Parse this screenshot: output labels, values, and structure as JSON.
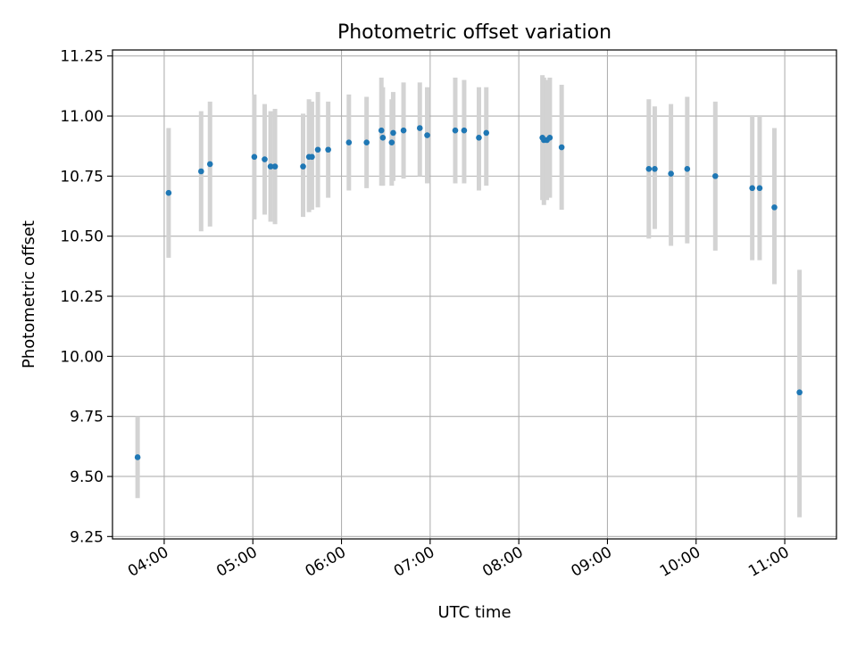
{
  "chart_data": {
    "type": "scatter",
    "title": "Photometric offset variation",
    "xlabel": "UTC time",
    "ylabel": "Photometric offset",
    "xlim": [
      "03:25",
      "11:35"
    ],
    "ylim": [
      9.24,
      11.275
    ],
    "x_ticks": [
      "04:00",
      "05:00",
      "06:00",
      "07:00",
      "08:00",
      "09:00",
      "10:00",
      "11:00"
    ],
    "y_ticks": [
      "9.25",
      "9.50",
      "9.75",
      "10.00",
      "10.25",
      "10.50",
      "10.75",
      "11.00",
      "11.25"
    ],
    "grid": true,
    "colors": {
      "point": "#1f77b4",
      "errorbar": "#d3d3d3",
      "grid": "#b0b0b0",
      "axis": "#000000"
    },
    "points": [
      {
        "t": "03:42",
        "y": 9.58,
        "lo": 9.41,
        "hi": 9.75
      },
      {
        "t": "04:03",
        "y": 10.68,
        "lo": 10.41,
        "hi": 10.95
      },
      {
        "t": "04:25",
        "y": 10.77,
        "lo": 10.52,
        "hi": 11.02
      },
      {
        "t": "04:31",
        "y": 10.8,
        "lo": 10.54,
        "hi": 11.06
      },
      {
        "t": "05:01",
        "y": 10.83,
        "lo": 10.57,
        "hi": 11.09
      },
      {
        "t": "05:08",
        "y": 10.82,
        "lo": 10.59,
        "hi": 11.05
      },
      {
        "t": "05:12",
        "y": 10.79,
        "lo": 10.56,
        "hi": 11.02
      },
      {
        "t": "05:15",
        "y": 10.79,
        "lo": 10.55,
        "hi": 11.03
      },
      {
        "t": "05:34",
        "y": 10.79,
        "lo": 10.58,
        "hi": 11.01
      },
      {
        "t": "05:38",
        "y": 10.83,
        "lo": 10.6,
        "hi": 11.07
      },
      {
        "t": "05:40",
        "y": 10.83,
        "lo": 10.61,
        "hi": 11.06
      },
      {
        "t": "05:44",
        "y": 10.86,
        "lo": 10.62,
        "hi": 11.1
      },
      {
        "t": "05:51",
        "y": 10.86,
        "lo": 10.66,
        "hi": 11.06
      },
      {
        "t": "06:05",
        "y": 10.89,
        "lo": 10.69,
        "hi": 11.09
      },
      {
        "t": "06:17",
        "y": 10.89,
        "lo": 10.7,
        "hi": 11.08
      },
      {
        "t": "06:27",
        "y": 10.94,
        "lo": 10.71,
        "hi": 11.16
      },
      {
        "t": "06:28",
        "y": 10.91,
        "lo": 10.71,
        "hi": 11.12
      },
      {
        "t": "06:34",
        "y": 10.89,
        "lo": 10.71,
        "hi": 11.07
      },
      {
        "t": "06:35",
        "y": 10.93,
        "lo": 10.73,
        "hi": 11.1
      },
      {
        "t": "06:42",
        "y": 10.94,
        "lo": 10.74,
        "hi": 11.14
      },
      {
        "t": "06:53",
        "y": 10.95,
        "lo": 10.75,
        "hi": 11.14
      },
      {
        "t": "06:58",
        "y": 10.92,
        "lo": 10.72,
        "hi": 11.12
      },
      {
        "t": "07:17",
        "y": 10.94,
        "lo": 10.72,
        "hi": 11.16
      },
      {
        "t": "07:23",
        "y": 10.94,
        "lo": 10.72,
        "hi": 11.15
      },
      {
        "t": "07:33",
        "y": 10.91,
        "lo": 10.69,
        "hi": 11.12
      },
      {
        "t": "07:38",
        "y": 10.93,
        "lo": 10.71,
        "hi": 11.12
      },
      {
        "t": "08:16",
        "y": 10.91,
        "lo": 10.65,
        "hi": 11.17
      },
      {
        "t": "08:17",
        "y": 10.9,
        "lo": 10.63,
        "hi": 11.16
      },
      {
        "t": "08:19",
        "y": 10.9,
        "lo": 10.65,
        "hi": 11.15
      },
      {
        "t": "08:21",
        "y": 10.91,
        "lo": 10.66,
        "hi": 11.16
      },
      {
        "t": "08:29",
        "y": 10.87,
        "lo": 10.61,
        "hi": 11.13
      },
      {
        "t": "09:28",
        "y": 10.78,
        "lo": 10.49,
        "hi": 11.07
      },
      {
        "t": "09:32",
        "y": 10.78,
        "lo": 10.53,
        "hi": 11.04
      },
      {
        "t": "09:43",
        "y": 10.76,
        "lo": 10.46,
        "hi": 11.05
      },
      {
        "t": "09:54",
        "y": 10.78,
        "lo": 10.47,
        "hi": 11.08
      },
      {
        "t": "10:13",
        "y": 10.75,
        "lo": 10.44,
        "hi": 11.06
      },
      {
        "t": "10:38",
        "y": 10.7,
        "lo": 10.4,
        "hi": 11.0
      },
      {
        "t": "10:43",
        "y": 10.7,
        "lo": 10.4,
        "hi": 11.0
      },
      {
        "t": "10:53",
        "y": 10.62,
        "lo": 10.3,
        "hi": 10.95
      },
      {
        "t": "11:10",
        "y": 9.85,
        "lo": 9.33,
        "hi": 10.36
      }
    ]
  }
}
